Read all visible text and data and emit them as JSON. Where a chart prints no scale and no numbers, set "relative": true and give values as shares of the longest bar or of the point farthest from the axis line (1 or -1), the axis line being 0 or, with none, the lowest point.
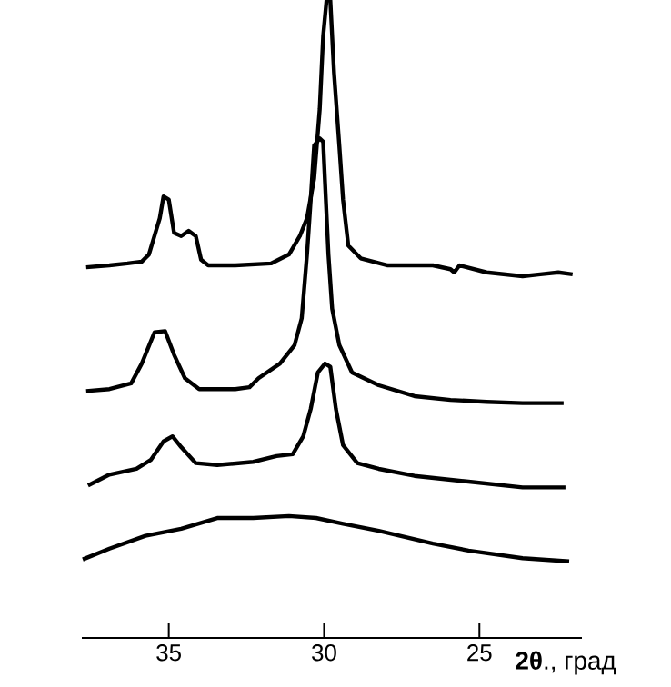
{
  "chart_data": {
    "type": "line",
    "relative": true,
    "xlabel": "**2θ**., град",
    "xlim": [
      37.8,
      21.7
    ],
    "xticks": [
      35,
      30,
      25
    ],
    "series": [
      {
        "color": "#000000",
        "x": [
          37.66,
          36.91,
          36.33,
          35.87,
          35.64,
          35.29,
          35.17,
          35.0,
          34.83,
          34.6,
          34.36,
          34.13,
          33.96,
          33.73,
          32.86,
          31.71,
          31.13,
          30.78,
          30.55,
          30.32,
          30.14,
          30.03,
          29.92,
          29.8,
          29.68,
          29.51,
          29.39,
          29.22,
          28.82,
          27.95,
          26.5,
          25.93,
          25.81,
          25.64,
          24.77,
          23.61,
          23.04,
          22.46,
          22.0
        ],
        "values": [
          0.581,
          0.584,
          0.587,
          0.59,
          0.601,
          0.658,
          0.692,
          0.687,
          0.635,
          0.63,
          0.638,
          0.63,
          0.593,
          0.584,
          0.584,
          0.587,
          0.601,
          0.63,
          0.658,
          0.72,
          0.829,
          0.943,
          1.0,
          1.0,
          0.886,
          0.772,
          0.687,
          0.615,
          0.595,
          0.584,
          0.584,
          0.578,
          0.573,
          0.584,
          0.573,
          0.567,
          0.57,
          0.573,
          0.57
        ]
      },
      {
        "color": "#000000",
        "x": [
          37.66,
          36.91,
          36.21,
          35.87,
          35.46,
          35.12,
          34.83,
          34.48,
          34.02,
          32.86,
          32.4,
          32.11,
          31.42,
          30.95,
          30.72,
          30.55,
          30.43,
          30.32,
          30.14,
          30.03,
          29.97,
          29.86,
          29.74,
          29.51,
          29.1,
          28.24,
          27.09,
          25.93,
          24.77,
          23.61,
          22.29
        ],
        "values": [
          0.387,
          0.39,
          0.399,
          0.43,
          0.479,
          0.481,
          0.444,
          0.407,
          0.39,
          0.39,
          0.393,
          0.407,
          0.43,
          0.459,
          0.501,
          0.601,
          0.687,
          0.772,
          0.783,
          0.778,
          0.715,
          0.601,
          0.516,
          0.459,
          0.416,
          0.396,
          0.379,
          0.373,
          0.37,
          0.368,
          0.368
        ]
      },
      {
        "color": "#000000",
        "x": [
          37.6,
          36.91,
          36.04,
          35.58,
          35.17,
          34.88,
          34.6,
          34.13,
          33.44,
          32.28,
          31.53,
          31.01,
          30.67,
          30.43,
          30.2,
          29.97,
          29.8,
          29.62,
          29.39,
          28.93,
          28.24,
          27.09,
          25.35,
          23.61,
          22.23
        ],
        "values": [
          0.239,
          0.256,
          0.265,
          0.279,
          0.308,
          0.316,
          0.299,
          0.274,
          0.271,
          0.276,
          0.285,
          0.288,
          0.316,
          0.359,
          0.416,
          0.43,
          0.425,
          0.359,
          0.302,
          0.274,
          0.265,
          0.254,
          0.245,
          0.236,
          0.236
        ]
      },
      {
        "color": "#000000",
        "x": [
          37.77,
          36.91,
          35.75,
          34.6,
          33.44,
          32.28,
          31.13,
          30.26,
          29.39,
          28.24,
          26.5,
          25.35,
          23.61,
          22.11
        ],
        "values": [
          0.123,
          0.14,
          0.16,
          0.171,
          0.188,
          0.188,
          0.191,
          0.188,
          0.179,
          0.168,
          0.148,
          0.137,
          0.125,
          0.12
        ]
      }
    ]
  }
}
